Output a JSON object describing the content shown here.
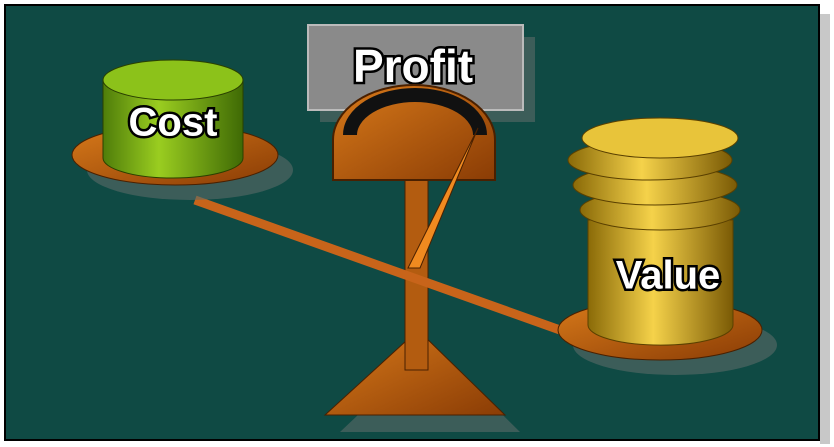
{
  "labels": {
    "profit": "Profit",
    "cost": "Cost",
    "value": "Value"
  }
}
